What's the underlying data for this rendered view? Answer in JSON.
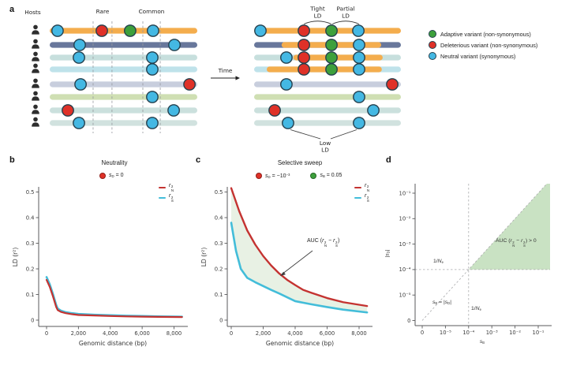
{
  "panels": {
    "a": "a",
    "b": "b",
    "c": "c",
    "d": "d"
  },
  "panel_a": {
    "hosts_label": "Hosts",
    "rare_label": "Rare",
    "common_label": "Common",
    "time_label": "Time",
    "tight_ld": [
      "Tight",
      "LD"
    ],
    "partial_ld": [
      "Partial",
      "LD"
    ],
    "low_ld": [
      "Low",
      "LD"
    ],
    "legend": [
      {
        "name": "adaptive",
        "label": "Adaptive variant (non-synonymous)",
        "color": "#3da03c"
      },
      {
        "name": "deleterious",
        "label": "Deleterious variant (non-synonymous)",
        "color": "#df3128"
      },
      {
        "name": "neutral",
        "label": "Neutral variant (synonymous)",
        "color": "#44b8e3"
      }
    ],
    "variant_colors": {
      "adaptive": "#3da03c",
      "deleterious": "#df3128",
      "neutral": "#44b8e3"
    },
    "variant_border": "#24404e",
    "sweep_color": "#f4ad4d",
    "row_colors": [
      "#f4ad4d",
      "#68779b",
      "#c7dfdd",
      "#bfe2ea",
      "#c8cedd",
      "#cfdfb3",
      "#cbe0dd",
      "#d1e2df"
    ],
    "rare_band": [
      0.294,
      0.422
    ],
    "common_band": [
      0.631,
      0.749
    ],
    "left_rows": [
      {
        "variants": [
          {
            "t": "neutral",
            "p": 0.053
          },
          {
            "t": "deleterious",
            "p": 0.353
          },
          {
            "t": "adaptive",
            "p": 0.545
          },
          {
            "t": "neutral",
            "p": 0.7
          }
        ]
      },
      {
        "variants": [
          {
            "t": "neutral",
            "p": 0.203
          },
          {
            "t": "neutral",
            "p": 0.845
          }
        ]
      },
      {
        "variants": [
          {
            "t": "neutral",
            "p": 0.198
          },
          {
            "t": "neutral",
            "p": 0.695
          }
        ]
      },
      {
        "variants": [
          {
            "t": "neutral",
            "p": 0.695
          }
        ]
      },
      {
        "variants": [
          {
            "t": "neutral",
            "p": 0.209
          },
          {
            "t": "deleterious",
            "p": 0.947
          }
        ]
      },
      {
        "variants": [
          {
            "t": "neutral",
            "p": 0.695
          }
        ]
      },
      {
        "variants": [
          {
            "t": "deleterious",
            "p": 0.123
          },
          {
            "t": "neutral",
            "p": 0.84
          }
        ]
      },
      {
        "variants": [
          {
            "t": "neutral",
            "p": 0.198
          },
          {
            "t": "neutral",
            "p": 0.695
          }
        ]
      }
    ],
    "right_rows": [
      {
        "variants": [
          {
            "t": "neutral",
            "p": 0.043
          },
          {
            "t": "deleterious",
            "p": 0.339
          },
          {
            "t": "adaptive",
            "p": 0.527
          },
          {
            "t": "neutral",
            "p": 0.71
          }
        ]
      },
      {
        "sweep": [
          0.187,
          0.866
        ],
        "variants": [
          {
            "t": "deleterious",
            "p": 0.339
          },
          {
            "t": "adaptive",
            "p": 0.527
          },
          {
            "t": "neutral",
            "p": 0.715
          }
        ]
      },
      {
        "sweep": [
          0.267,
          0.876
        ],
        "variants": [
          {
            "t": "neutral",
            "p": 0.22
          },
          {
            "t": "deleterious",
            "p": 0.339
          },
          {
            "t": "adaptive",
            "p": 0.527
          },
          {
            "t": "neutral",
            "p": 0.715
          }
        ]
      },
      {
        "sweep": [
          0.086,
          0.87
        ],
        "variants": [
          {
            "t": "deleterious",
            "p": 0.339
          },
          {
            "t": "adaptive",
            "p": 0.527
          },
          {
            "t": "neutral",
            "p": 0.715
          }
        ]
      },
      {
        "variants": [
          {
            "t": "neutral",
            "p": 0.22
          },
          {
            "t": "deleterious",
            "p": 0.941
          }
        ]
      },
      {
        "variants": [
          {
            "t": "neutral",
            "p": 0.715
          }
        ]
      },
      {
        "variants": [
          {
            "t": "deleterious",
            "p": 0.14
          },
          {
            "t": "neutral",
            "p": 0.812
          }
        ]
      },
      {
        "variants": [
          {
            "t": "neutral",
            "p": 0.231
          },
          {
            "t": "neutral",
            "p": 0.715
          }
        ]
      }
    ]
  },
  "chart_data": [
    {
      "type": "line",
      "panel": "b",
      "title": "Neutrality",
      "badges": [
        {
          "color": "#df3128",
          "label": "s_{D} = 0"
        }
      ],
      "xlabel": "Genomic distance (bp)",
      "ylabel": "LD (r²)",
      "xlim": [
        0,
        8800
      ],
      "ylim": [
        0,
        0.54
      ],
      "xticks": [
        0,
        2000,
        4000,
        6000,
        8000
      ],
      "xtick_labels": [
        "0",
        "2,000",
        "4,000",
        "6,000",
        "8,000"
      ],
      "yticks": [
        0,
        0.1,
        0.2,
        0.3,
        0.4,
        0.5
      ],
      "ytick_labels": [
        "0",
        "0.1",
        "0.2",
        "0.3",
        "0.4",
        "0.5"
      ],
      "grid": false,
      "fill_between": false,
      "legend": [
        {
          "label": "r^{2}_{N}",
          "color": "#c43331"
        },
        {
          "label": "r^{2}_{S}",
          "color": "#43bdd9"
        }
      ],
      "series": [
        {
          "name": "r_S2",
          "color": "#43bdd9",
          "width": 2.6,
          "x": [
            0,
            200,
            400,
            600,
            700,
            900,
            1200,
            1600,
            2000,
            3000,
            4000,
            5000,
            6000,
            7000,
            8500
          ],
          "y": [
            0.168,
            0.14,
            0.102,
            0.06,
            0.045,
            0.037,
            0.031,
            0.027,
            0.024,
            0.021,
            0.019,
            0.017,
            0.016,
            0.0145,
            0.0135
          ]
        },
        {
          "name": "r_N2",
          "color": "#c43331",
          "width": 2.2,
          "x": [
            0,
            200,
            400,
            600,
            700,
            900,
            1200,
            1600,
            2000,
            3000,
            4000,
            5000,
            6000,
            7000,
            8500
          ],
          "y": [
            0.157,
            0.13,
            0.093,
            0.052,
            0.039,
            0.032,
            0.027,
            0.023,
            0.02,
            0.018,
            0.016,
            0.0145,
            0.0135,
            0.0128,
            0.012
          ]
        }
      ]
    },
    {
      "type": "line",
      "panel": "c",
      "title": "Selective sweep",
      "badges": [
        {
          "color": "#df3128",
          "label": "s_{D} = −10^{−3}"
        },
        {
          "color": "#3da03c",
          "label": "s_{B} = 0.05"
        }
      ],
      "xlabel": "Genomic distance (bp)",
      "ylabel": "LD (r²)",
      "xlim": [
        0,
        8800
      ],
      "ylim": [
        0,
        0.54
      ],
      "xticks": [
        0,
        2000,
        4000,
        6000,
        8000
      ],
      "xtick_labels": [
        "0",
        "2,000",
        "4,000",
        "6,000",
        "8,000"
      ],
      "yticks": [
        0,
        0.1,
        0.2,
        0.3,
        0.4,
        0.5
      ],
      "ytick_labels": [
        "0",
        "0.1",
        "0.2",
        "0.3",
        "0.4",
        "0.5"
      ],
      "grid": false,
      "fill_between": true,
      "fill_color": "#e8f1e4",
      "annotation": {
        "label": "AUC (r^{2}_{N} − r^{2}_{S})"
      },
      "legend": [
        {
          "label": "r^{2}_{N}",
          "color": "#c43331"
        },
        {
          "label": "r^{2}_{S}",
          "color": "#43bdd9"
        }
      ],
      "series": [
        {
          "name": "r_S2",
          "color": "#43bdd9",
          "width": 2.6,
          "x": [
            0,
            300,
            600,
            1000,
            1500,
            2000,
            2500,
            3000,
            3500,
            4000,
            5000,
            6000,
            7000,
            8500
          ],
          "y": [
            0.38,
            0.27,
            0.2,
            0.165,
            0.148,
            0.133,
            0.118,
            0.104,
            0.089,
            0.074,
            0.062,
            0.051,
            0.041,
            0.03
          ]
        },
        {
          "name": "r_N2",
          "color": "#c43331",
          "width": 2.4,
          "x": [
            0,
            500,
            1000,
            1500,
            2000,
            2500,
            3000,
            3500,
            4000,
            4500,
            5000,
            6000,
            7000,
            8500
          ],
          "y": [
            0.515,
            0.425,
            0.35,
            0.295,
            0.25,
            0.213,
            0.182,
            0.157,
            0.137,
            0.118,
            0.107,
            0.086,
            0.07,
            0.055
          ]
        }
      ]
    },
    {
      "type": "region",
      "panel": "d",
      "xlabel": "s_{B}",
      "ylabel": "|s_{D}|",
      "xtick_labels": [
        "0",
        "10⁻⁵",
        "10⁻⁴",
        "10⁻³",
        "10⁻²",
        "10⁻¹"
      ],
      "ytick_labels": [
        "0",
        "10⁻⁵",
        "10⁻⁴",
        "10⁻³",
        "10⁻²",
        "10⁻¹"
      ],
      "threshold_tick_index": 2,
      "region_color": "#c9e2c3",
      "region_label": "AUC (r^{2}_{N} − r^{2}_{S}) > 0",
      "ref_labels": {
        "ne_horizontal": "1/N_{e}",
        "ne_vertical": "1/N_{e}",
        "diagonal": "s_{B} = |s_{D}|"
      }
    }
  ]
}
